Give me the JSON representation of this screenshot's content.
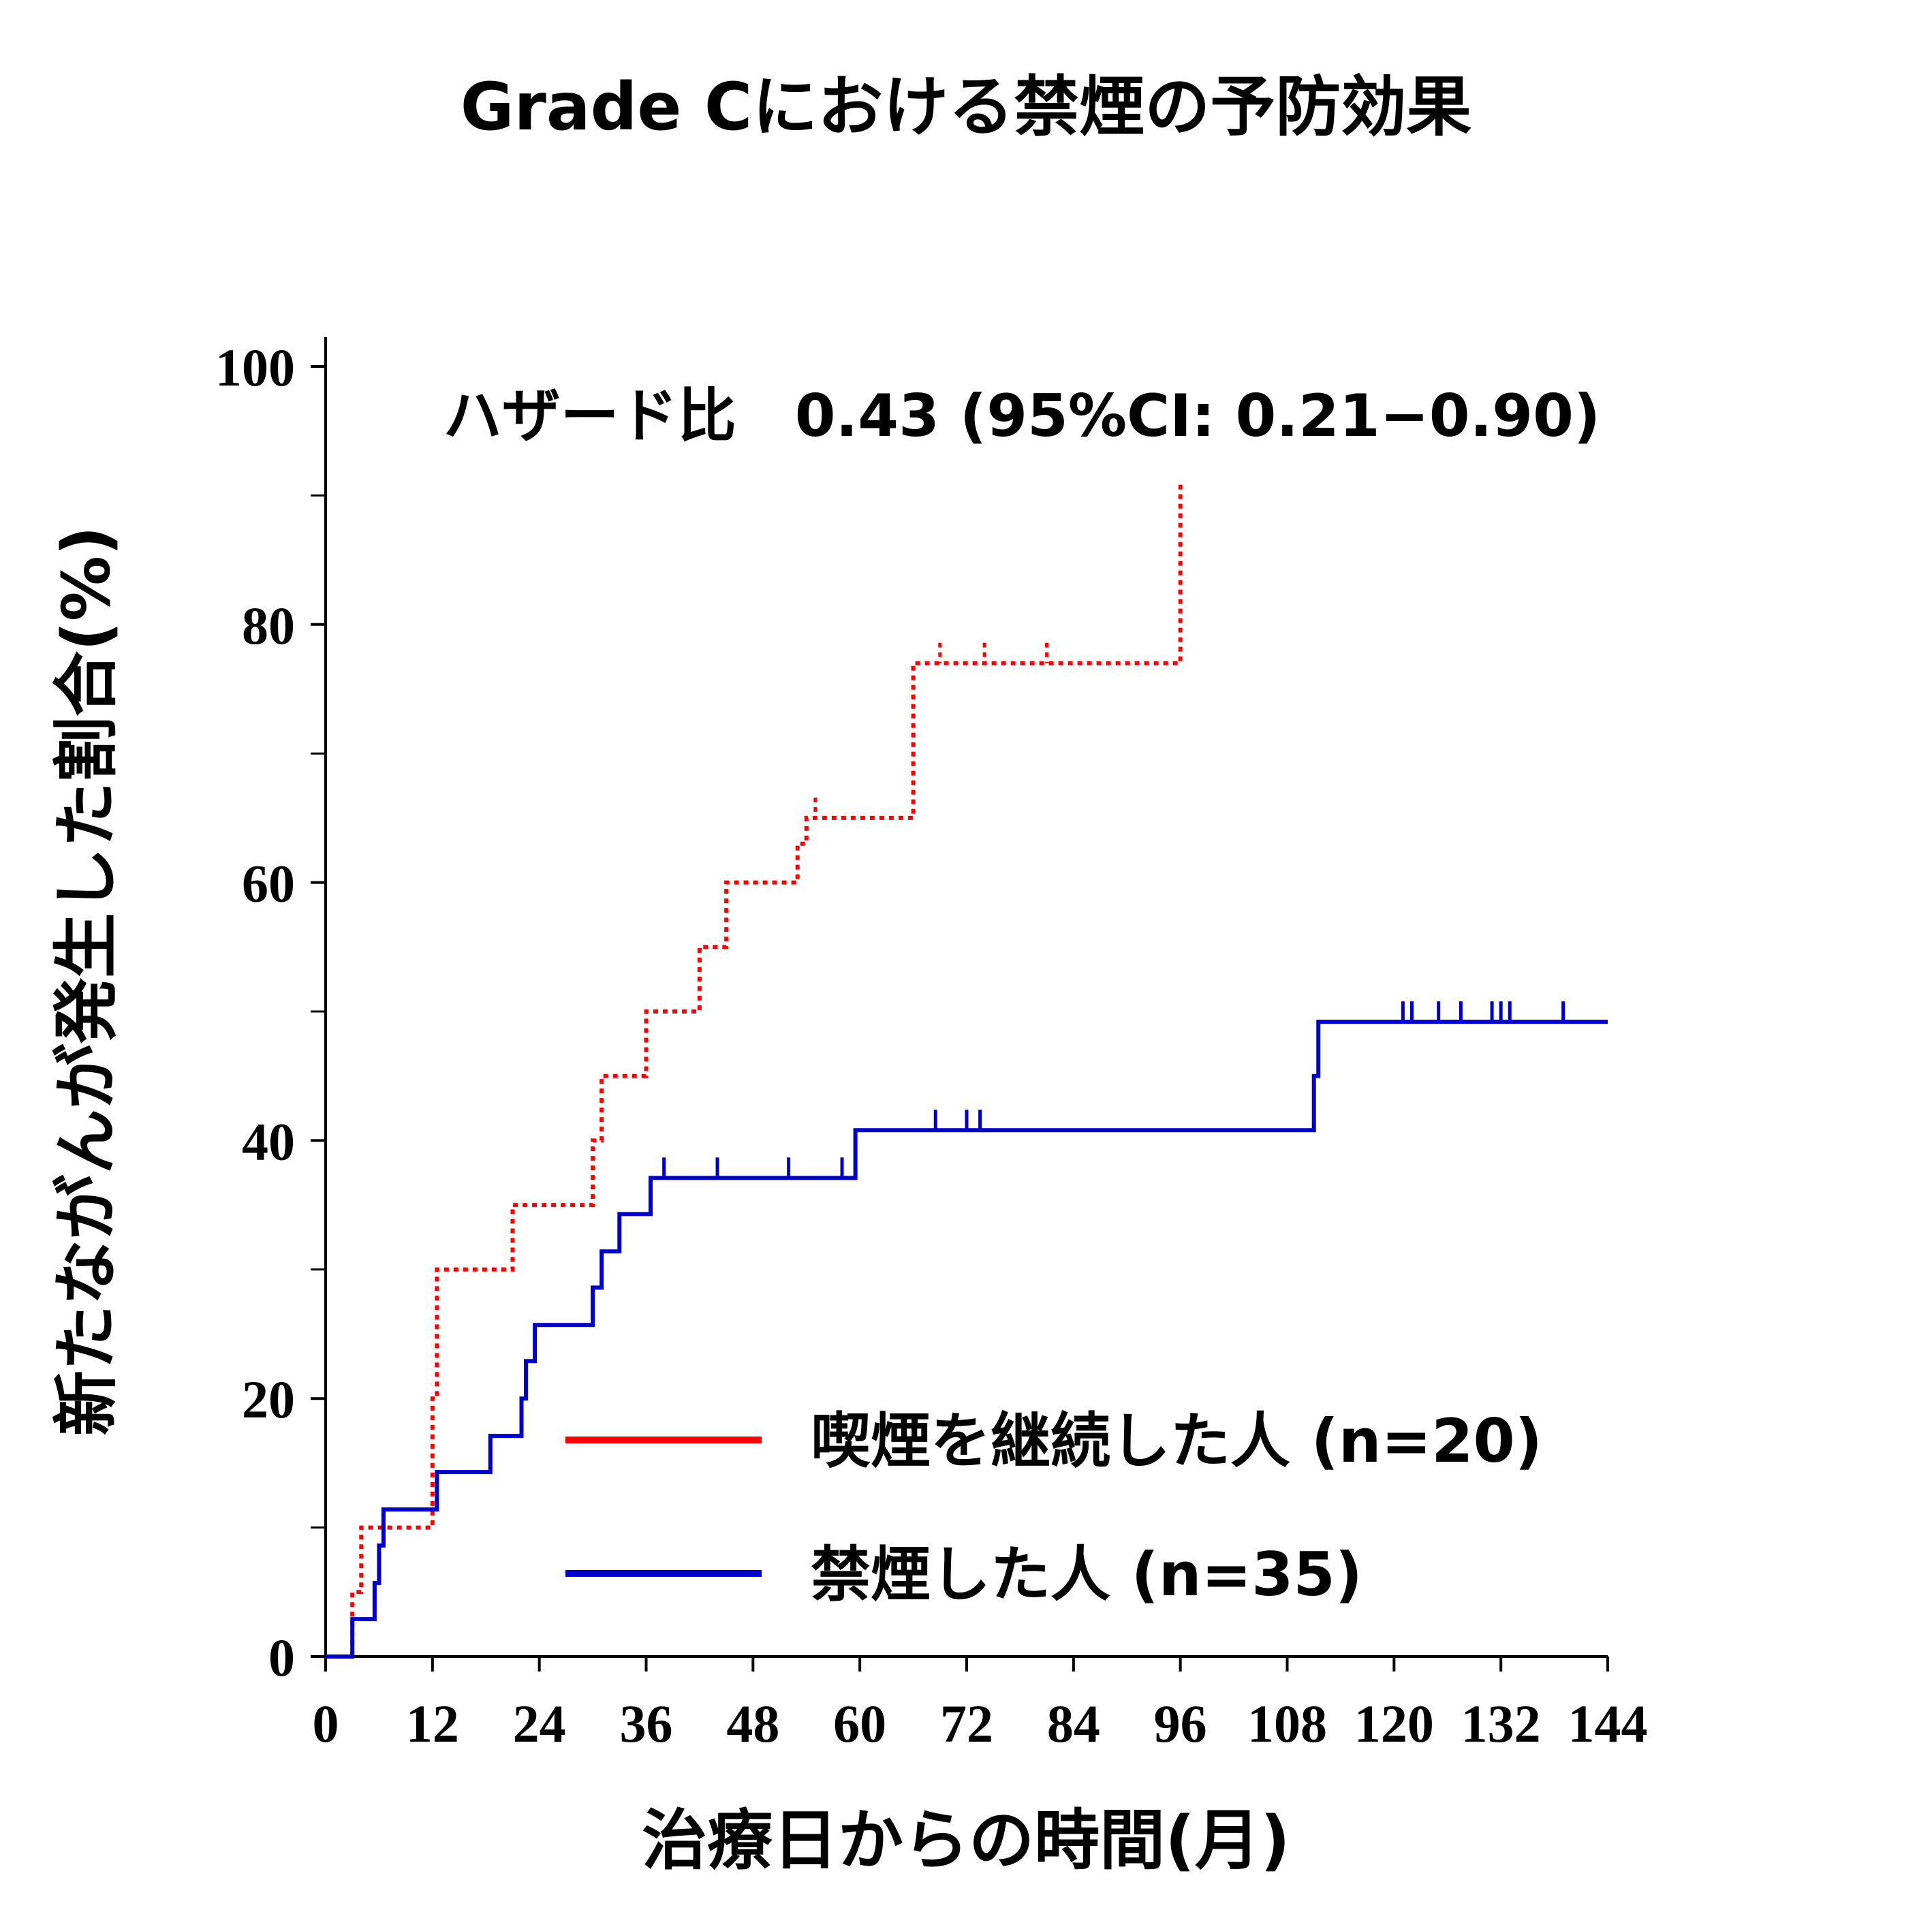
{
  "chart_data": {
    "type": "line",
    "subtype": "step (Kaplan-Meier cumulative incidence)",
    "title": "Grade Cにおける禁煙の予防効果",
    "annotation": "ハザード比　0.43 (95%CI: 0.21−0.90)",
    "xlabel": "治療日からの時間(月)",
    "ylabel": "新たながんが発生した割合(%)",
    "xlim": [
      0,
      144
    ],
    "ylim": [
      0,
      100
    ],
    "xticks": [
      "0",
      "12",
      "24",
      "36",
      "48",
      "60",
      "72",
      "84",
      "96",
      "108",
      "120",
      "132",
      "144"
    ],
    "yticks": [
      "0",
      "20",
      "40",
      "60",
      "80",
      "100"
    ],
    "grid": false,
    "legend_position": "bottom-right",
    "series": [
      {
        "name": "喫煙を継続した人 (n=20)",
        "color": "#ff0000",
        "line_style": "dotted",
        "x": [
          0,
          3,
          4,
          12,
          12.5,
          21,
          30,
          31,
          36,
          42,
          45,
          53,
          54,
          66,
          96
        ],
        "y": [
          0,
          5,
          10,
          20,
          30,
          35,
          40,
          45,
          50,
          55,
          60,
          63,
          65,
          77,
          91
        ],
        "censored_x": [
          55,
          69,
          74,
          81
        ],
        "censored_y": [
          65,
          77,
          77,
          77
        ]
      },
      {
        "name": "禁煙した人 (n=35)",
        "color": "#0000cc",
        "line_style": "solid",
        "x": [
          0,
          3,
          5.5,
          6,
          6.5,
          12.5,
          18.5,
          22,
          22.5,
          23.5,
          30,
          31,
          33,
          36.5,
          59.5,
          111,
          111.5
        ],
        "y": [
          0,
          2.9,
          5.7,
          8.6,
          11.4,
          14.3,
          17.1,
          20,
          22.9,
          25.7,
          28.6,
          31.4,
          34.3,
          37.1,
          40.8,
          45,
          49.2
        ],
        "censored_x": [
          38,
          44,
          52,
          58,
          68.5,
          72,
          73.5,
          121,
          122,
          125,
          127.5,
          131,
          132,
          133,
          139
        ],
        "censored_y": [
          37.1,
          37.1,
          37.1,
          37.1,
          40.8,
          40.8,
          40.8,
          49.2,
          49.2,
          49.2,
          49.2,
          49.2,
          49.2,
          49.2,
          49.2
        ]
      }
    ]
  }
}
